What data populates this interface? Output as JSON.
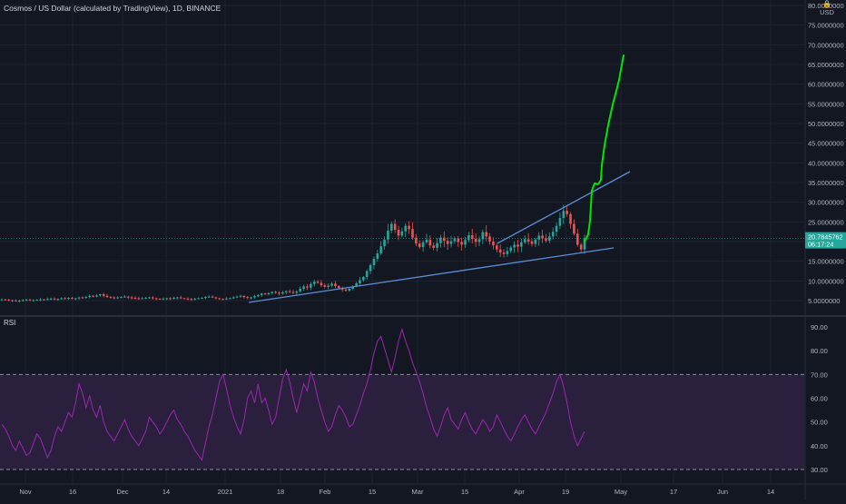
{
  "header": {
    "symbol_title": "Cosmos / US Dollar (calculated by TradingView), 1D, BINANCE",
    "currency": "USD",
    "lock_icon": "lock-icon"
  },
  "indicator": {
    "label": "RSI"
  },
  "price_tag": {
    "price": "20.7845762",
    "countdown": "06:17:24",
    "color": "#26a69a"
  },
  "colors": {
    "background": "#131722",
    "grid": "#1f2330",
    "up": "#26a69a",
    "down": "#ef5350",
    "trendline": "#5b8fd6",
    "projection": "#00e600",
    "rsi_line": "#9c27b0",
    "rsi_band": "#2a1f3d"
  },
  "chart_data": [
    {
      "type": "candlestick",
      "title": "Cosmos / US Dollar (calculated by TradingView), 1D, BINANCE",
      "ylabel": "USD",
      "yscale": "linear",
      "ylim": [
        0,
        80
      ],
      "y_ticks": [
        "80.0000000",
        "75.0000000",
        "70.0000000",
        "65.0000000",
        "60.0000000",
        "55.0000000",
        "50.0000000",
        "45.0000000",
        "40.0000000",
        "35.0000000",
        "30.0000000",
        "25.0000000",
        "20.0000000",
        "15.0000000",
        "10.0000000",
        "5.0000000"
      ],
      "x_ticks": [
        "Nov",
        "16",
        "Dec",
        "14",
        "2021",
        "18",
        "Feb",
        "15",
        "Mar",
        "15",
        "Apr",
        "19",
        "May",
        "17",
        "Jun",
        "14"
      ],
      "grid": true,
      "last_price": 20.7845762,
      "close_series": [
        5.3,
        5.2,
        5.1,
        5.0,
        5.0,
        4.9,
        5.1,
        5.2,
        5.0,
        5.1,
        5.2,
        5.3,
        5.2,
        5.4,
        5.5,
        5.3,
        5.4,
        5.6,
        5.5,
        5.7,
        5.5,
        5.6,
        5.8,
        5.7,
        5.9,
        6.2,
        6.0,
        6.3,
        6.6,
        6.2,
        5.9,
        5.8,
        5.7,
        5.8,
        5.9,
        6.0,
        5.8,
        5.7,
        5.6,
        5.5,
        5.6,
        5.7,
        5.8,
        5.6,
        5.5,
        5.4,
        5.5,
        5.6,
        5.5,
        5.7,
        5.8,
        5.6,
        5.5,
        5.4,
        5.3,
        5.5,
        5.6,
        5.7,
        5.9,
        6.0,
        5.8,
        5.6,
        5.4,
        5.3,
        5.5,
        5.6,
        5.8,
        6.0,
        6.2,
        5.9,
        5.7,
        5.8,
        6.1,
        6.4,
        6.8,
        6.6,
        6.9,
        7.2,
        7.0,
        6.8,
        7.1,
        7.4,
        7.2,
        7.0,
        7.3,
        8.0,
        8.6,
        8.3,
        9.2,
        9.8,
        9.5,
        8.9,
        8.5,
        8.8,
        9.3,
        8.7,
        8.2,
        7.8,
        7.5,
        8.0,
        8.6,
        9.4,
        10.2,
        11.0,
        12.5,
        14.0,
        15.6,
        17.0,
        18.8,
        20.5,
        22.8,
        24.5,
        23.0,
        21.5,
        22.6,
        24.0,
        23.2,
        21.0,
        19.5,
        18.6,
        19.8,
        20.5,
        19.0,
        18.4,
        19.6,
        21.0,
        20.2,
        19.4,
        20.1,
        20.8,
        19.9,
        19.2,
        20.4,
        21.6,
        20.7,
        19.9,
        20.6,
        22.4,
        21.3,
        20.0,
        19.0,
        18.0,
        17.2,
        16.8,
        17.6,
        18.5,
        19.2,
        18.7,
        19.8,
        20.6,
        20.0,
        19.4,
        20.5,
        21.5,
        20.8,
        20.2,
        21.3,
        22.5,
        24.0,
        26.0,
        27.8,
        27.0,
        24.5,
        22.0,
        19.2,
        18.0,
        20.8
      ],
      "trendlines": [
        {
          "from": {
            "date": "2021-01-07",
            "price": 4.5
          },
          "to": {
            "date": "2021-04-27",
            "price": 18.5
          }
        },
        {
          "from": {
            "date": "2021-03-24",
            "price": 17.5
          },
          "to": {
            "date": "2021-05-01",
            "price": 37.5
          }
        }
      ],
      "projection_path_prices": [
        20.8,
        22.5,
        25.0,
        29.0,
        33.5,
        35.0,
        34.5,
        34.8,
        38.0,
        44.0,
        49.0,
        53.0,
        56.0,
        59.0,
        62.0,
        65.0,
        67.0
      ]
    },
    {
      "type": "line",
      "title": "RSI",
      "ylim": [
        27,
        95
      ],
      "y_ticks": [
        "90.00",
        "80.00",
        "70.00",
        "60.00",
        "50.00",
        "40.00",
        "30.00"
      ],
      "bands": [
        30,
        70
      ],
      "x_ticks": [
        "Nov",
        "16",
        "Dec",
        "14",
        "2021",
        "18",
        "Feb",
        "15",
        "Mar",
        "15",
        "Apr",
        "19",
        "May",
        "17",
        "Jun",
        "14"
      ],
      "series": [
        {
          "values": [
            49,
            47,
            44,
            40,
            38,
            42,
            39,
            36,
            37,
            41,
            45,
            43,
            39,
            35,
            38,
            44,
            48,
            46,
            50,
            54,
            52,
            58,
            66,
            62,
            56,
            61,
            55,
            52,
            57,
            50,
            46,
            44,
            42,
            45,
            48,
            51,
            47,
            44,
            42,
            40,
            43,
            46,
            52,
            50,
            48,
            45,
            47,
            50,
            53,
            55,
            51,
            49,
            46,
            44,
            41,
            38,
            36,
            34,
            41,
            48,
            53,
            60,
            67,
            70,
            64,
            57,
            52,
            48,
            45,
            51,
            60,
            63,
            58,
            66,
            58,
            60,
            55,
            49,
            52,
            60,
            68,
            72,
            67,
            60,
            54,
            60,
            66,
            63,
            71,
            67,
            60,
            55,
            50,
            46,
            48,
            53,
            57,
            55,
            52,
            48,
            49,
            53,
            57,
            62,
            66,
            72,
            79,
            84,
            86,
            81,
            76,
            71,
            77,
            84,
            89,
            84,
            80,
            75,
            71,
            67,
            62,
            56,
            52,
            47,
            44,
            48,
            53,
            56,
            51,
            49,
            47,
            51,
            54,
            50,
            47,
            45,
            48,
            51,
            49,
            46,
            48,
            53,
            50,
            47,
            44,
            42,
            45,
            48,
            51,
            53,
            50,
            47,
            45,
            48,
            51,
            54,
            58,
            62,
            67,
            70,
            65,
            58,
            50,
            44,
            40,
            43,
            46
          ]
        }
      ]
    }
  ]
}
